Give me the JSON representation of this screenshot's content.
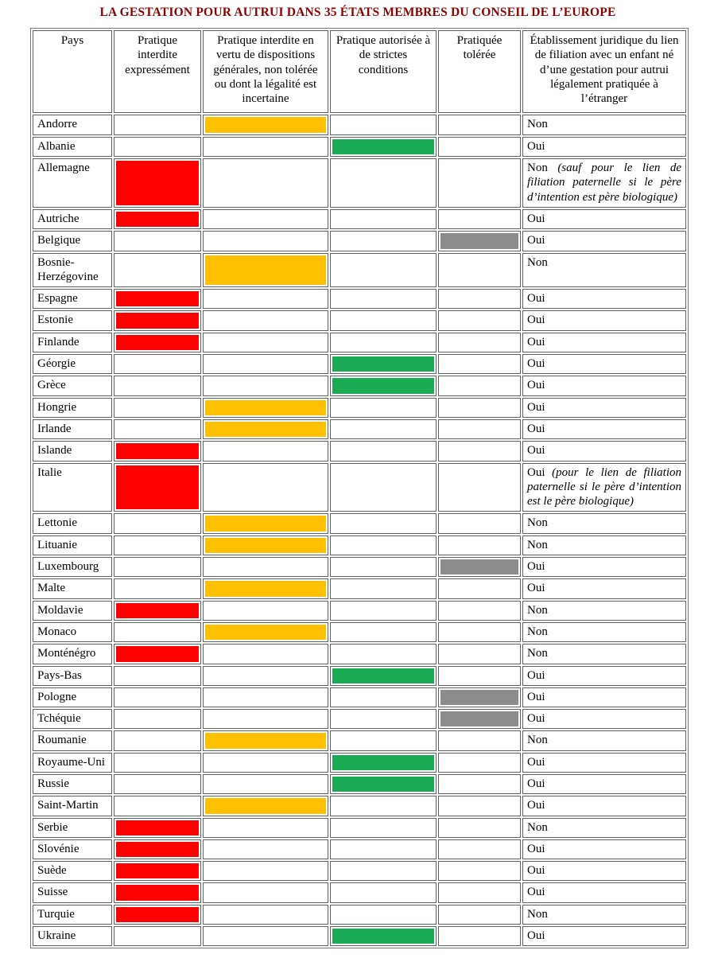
{
  "title": "LA GESTATION POUR AUTRUI DANS 35 ÉTATS MEMBRES DU CONSEIL DE L’EUROPE",
  "colors": {
    "red": "#fe0000",
    "orange": "#ffc000",
    "green": "#1aab54",
    "gray": "#8c8c8c",
    "title_text": "#8b0000"
  },
  "legend": {
    "red": "Pratique interdite expressément",
    "orange": "Pratique interdite en vertu de dispositions générales, non tolérée ou dont la légalité est incertaine",
    "green": "Pratique autorisée à de strictes conditions",
    "gray": "Pratiquée tolérée"
  },
  "table": {
    "headers": [
      "Pays",
      "Pratique interdite expressément",
      "Pratique interdite en vertu de dispositions générales, non tolérée ou dont la légalité est incertaine",
      "Pratique autorisée à de strictes conditions",
      "Pratiquée tolérée",
      "Établissement juridique du lien de filiation avec un enfant né d’une gestation pour autrui légalement pratiquée à l’étranger"
    ],
    "rows": [
      {
        "pays": "Andorre",
        "mark": "orange",
        "filiation": "Non",
        "note": ""
      },
      {
        "pays": "Albanie",
        "mark": "green",
        "filiation": "Oui",
        "note": ""
      },
      {
        "pays": "Allemagne",
        "mark": "red",
        "filiation": "Non",
        "note": "(sauf pour le lien de filiation paternelle si le père d’intention est père biologique)"
      },
      {
        "pays": "Autriche",
        "mark": "red",
        "filiation": "Oui",
        "note": ""
      },
      {
        "pays": "Belgique",
        "mark": "gray",
        "filiation": "Oui",
        "note": ""
      },
      {
        "pays": "Bosnie-Herzégovine",
        "mark": "orange",
        "filiation": "Non",
        "note": ""
      },
      {
        "pays": "Espagne",
        "mark": "red",
        "filiation": "Oui",
        "note": ""
      },
      {
        "pays": "Estonie",
        "mark": "red",
        "filiation": "Oui",
        "note": ""
      },
      {
        "pays": "Finlande",
        "mark": "red",
        "filiation": "Oui",
        "note": ""
      },
      {
        "pays": "Géorgie",
        "mark": "green",
        "filiation": "Oui",
        "note": ""
      },
      {
        "pays": "Grèce",
        "mark": "green",
        "filiation": "Oui",
        "note": ""
      },
      {
        "pays": "Hongrie",
        "mark": "orange",
        "filiation": "Oui",
        "note": ""
      },
      {
        "pays": "Irlande",
        "mark": "orange",
        "filiation": "Oui",
        "note": ""
      },
      {
        "pays": "Islande",
        "mark": "red",
        "filiation": "Oui",
        "note": ""
      },
      {
        "pays": "Italie",
        "mark": "red",
        "filiation": "Oui",
        "note": "(pour le lien de filiation paternelle si le père d’intention est le père biologique)"
      },
      {
        "pays": "Lettonie",
        "mark": "orange",
        "filiation": "Non",
        "note": ""
      },
      {
        "pays": "Lituanie",
        "mark": "orange",
        "filiation": "Non",
        "note": ""
      },
      {
        "pays": "Luxembourg",
        "mark": "gray",
        "filiation": "Oui",
        "note": ""
      },
      {
        "pays": "Malte",
        "mark": "orange",
        "filiation": "Oui",
        "note": ""
      },
      {
        "pays": "Moldavie",
        "mark": "red",
        "filiation": "Non",
        "note": ""
      },
      {
        "pays": "Monaco",
        "mark": "orange",
        "filiation": "Non",
        "note": ""
      },
      {
        "pays": "Monténégro",
        "mark": "red",
        "filiation": "Non",
        "note": ""
      },
      {
        "pays": "Pays-Bas",
        "mark": "green",
        "filiation": "Oui",
        "note": ""
      },
      {
        "pays": "Pologne",
        "mark": "gray",
        "filiation": "Oui",
        "note": ""
      },
      {
        "pays": "Tchéquie",
        "mark": "gray",
        "filiation": "Oui",
        "note": ""
      },
      {
        "pays": "Roumanie",
        "mark": "orange",
        "filiation": "Non",
        "note": ""
      },
      {
        "pays": "Royaume-Uni",
        "mark": "green",
        "filiation": "Oui",
        "note": ""
      },
      {
        "pays": "Russie",
        "mark": "green",
        "filiation": "Oui",
        "note": ""
      },
      {
        "pays": "Saint-Martin",
        "mark": "orange",
        "filiation": "Oui",
        "note": ""
      },
      {
        "pays": "Serbie",
        "mark": "red",
        "filiation": "Non",
        "note": ""
      },
      {
        "pays": "Slovénie",
        "mark": "red",
        "filiation": "Oui",
        "note": ""
      },
      {
        "pays": "Suède",
        "mark": "red",
        "filiation": "Oui",
        "note": ""
      },
      {
        "pays": "Suisse",
        "mark": "red",
        "filiation": "Oui",
        "note": ""
      },
      {
        "pays": "Turquie",
        "mark": "red",
        "filiation": "Non",
        "note": ""
      },
      {
        "pays": "Ukraine",
        "mark": "green",
        "filiation": "Oui",
        "note": ""
      }
    ]
  }
}
